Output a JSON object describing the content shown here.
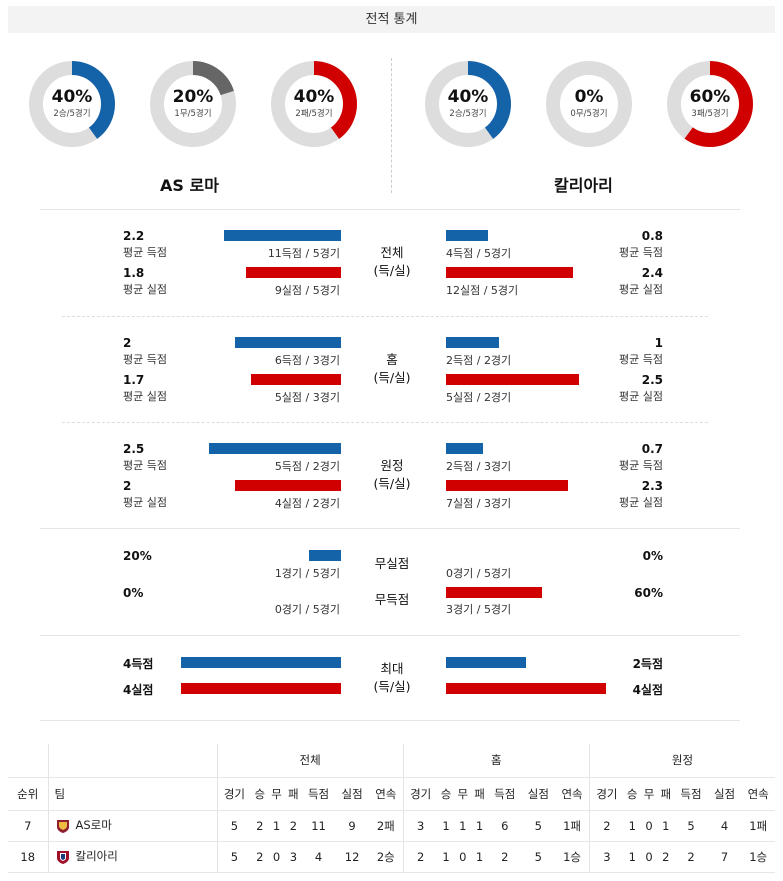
{
  "header": {
    "title": "전적 통계"
  },
  "teams": {
    "home": "AS 로마",
    "away": "칼리아리"
  },
  "colors": {
    "blue": "#1462a8",
    "red": "#d10000",
    "gray": "#666666",
    "track": "#dddddd"
  },
  "donuts": [
    {
      "pct_label": "40%",
      "sub": "2승/5경기",
      "fraction": 0.4,
      "color": "#1462a8"
    },
    {
      "pct_label": "20%",
      "sub": "1무/5경기",
      "fraction": 0.2,
      "color": "#666666"
    },
    {
      "pct_label": "40%",
      "sub": "2패/5경기",
      "fraction": 0.4,
      "color": "#d10000"
    },
    {
      "pct_label": "40%",
      "sub": "2승/5경기",
      "fraction": 0.4,
      "color": "#1462a8"
    },
    {
      "pct_label": "0%",
      "sub": "0무/5경기",
      "fraction": 0,
      "color": "#666666"
    },
    {
      "pct_label": "60%",
      "sub": "3패/5경기",
      "fraction": 0.6,
      "color": "#d10000"
    }
  ],
  "sections": [
    {
      "center": "전체",
      "center2": "(득/실)",
      "l1v": "2.2",
      "l1l": "평균 득점",
      "l1c": "11득점 / 5경기",
      "l1f": 2.2,
      "l2v": "1.8",
      "l2l": "평균 실점",
      "l2c": "9실점 / 5경기",
      "l2f": 1.8,
      "r1v": "0.8",
      "r1l": "평균 득점",
      "r1c": "4득점 / 5경기",
      "r1f": 0.8,
      "r2v": "2.4",
      "r2l": "평균 실점",
      "r2c": "12실점 / 5경기",
      "r2f": 2.4
    },
    {
      "center": "홈",
      "center2": "(득/실)",
      "l1v": "2",
      "l1l": "평균 득점",
      "l1c": "6득점 / 3경기",
      "l1f": 2.0,
      "l2v": "1.7",
      "l2l": "평균 실점",
      "l2c": "5실점 / 3경기",
      "l2f": 1.7,
      "r1v": "1",
      "r1l": "평균 득점",
      "r1c": "2득점 / 2경기",
      "r1f": 1.0,
      "r2v": "2.5",
      "r2l": "평균 실점",
      "r2c": "5실점 / 2경기",
      "r2f": 2.5
    },
    {
      "center": "원정",
      "center2": "(득/실)",
      "l1v": "2.5",
      "l1l": "평균 득점",
      "l1c": "5득점 / 2경기",
      "l1f": 2.5,
      "l2v": "2",
      "l2l": "평균 실점",
      "l2c": "4실점 / 2경기",
      "l2f": 2.0,
      "r1v": "0.7",
      "r1l": "평균 득점",
      "r1c": "2득점 / 3경기",
      "r1f": 0.7,
      "r2v": "2.3",
      "r2l": "평균 실점",
      "r2c": "7실점 / 3경기",
      "r2f": 2.3
    }
  ],
  "cleansheet": {
    "label1": "무실점",
    "label2": "무득점",
    "l1v": "20%",
    "l1c": "1경기 / 5경기",
    "l1f": 0.2,
    "l2v": "0%",
    "l2c": "0경기 / 5경기",
    "l2f": 0,
    "r1v": "0%",
    "r1c": "0경기 / 5경기",
    "r1f": 0,
    "r2v": "60%",
    "r2c": "3경기 / 5경기",
    "r2f": 0.6
  },
  "max": {
    "center": "최대",
    "center2": "(득/실)",
    "l1v": "4득점",
    "l1f": 4,
    "l2v": "4실점",
    "l2f": 4,
    "r1v": "2득점",
    "r1f": 2,
    "r2v": "4실점",
    "r2f": 4
  },
  "table": {
    "groups": [
      "전체",
      "홈",
      "원정"
    ],
    "rank_label": "순위",
    "team_label": "팀",
    "cols": [
      "경기",
      "승",
      "무",
      "패",
      "득점",
      "실점",
      "연속"
    ],
    "rows": [
      {
        "rank": "7",
        "team": "AS로마",
        "all": [
          "5",
          "2",
          "1",
          "2",
          "11",
          "9",
          "2패"
        ],
        "home": [
          "3",
          "1",
          "1",
          "1",
          "6",
          "5",
          "1패"
        ],
        "away": [
          "2",
          "1",
          "0",
          "1",
          "5",
          "4",
          "1패"
        ]
      },
      {
        "rank": "18",
        "team": "칼리아리",
        "all": [
          "5",
          "2",
          "0",
          "3",
          "4",
          "12",
          "2승"
        ],
        "home": [
          "2",
          "1",
          "0",
          "1",
          "2",
          "5",
          "1승"
        ],
        "away": [
          "3",
          "1",
          "0",
          "2",
          "2",
          "7",
          "1승"
        ]
      }
    ]
  }
}
